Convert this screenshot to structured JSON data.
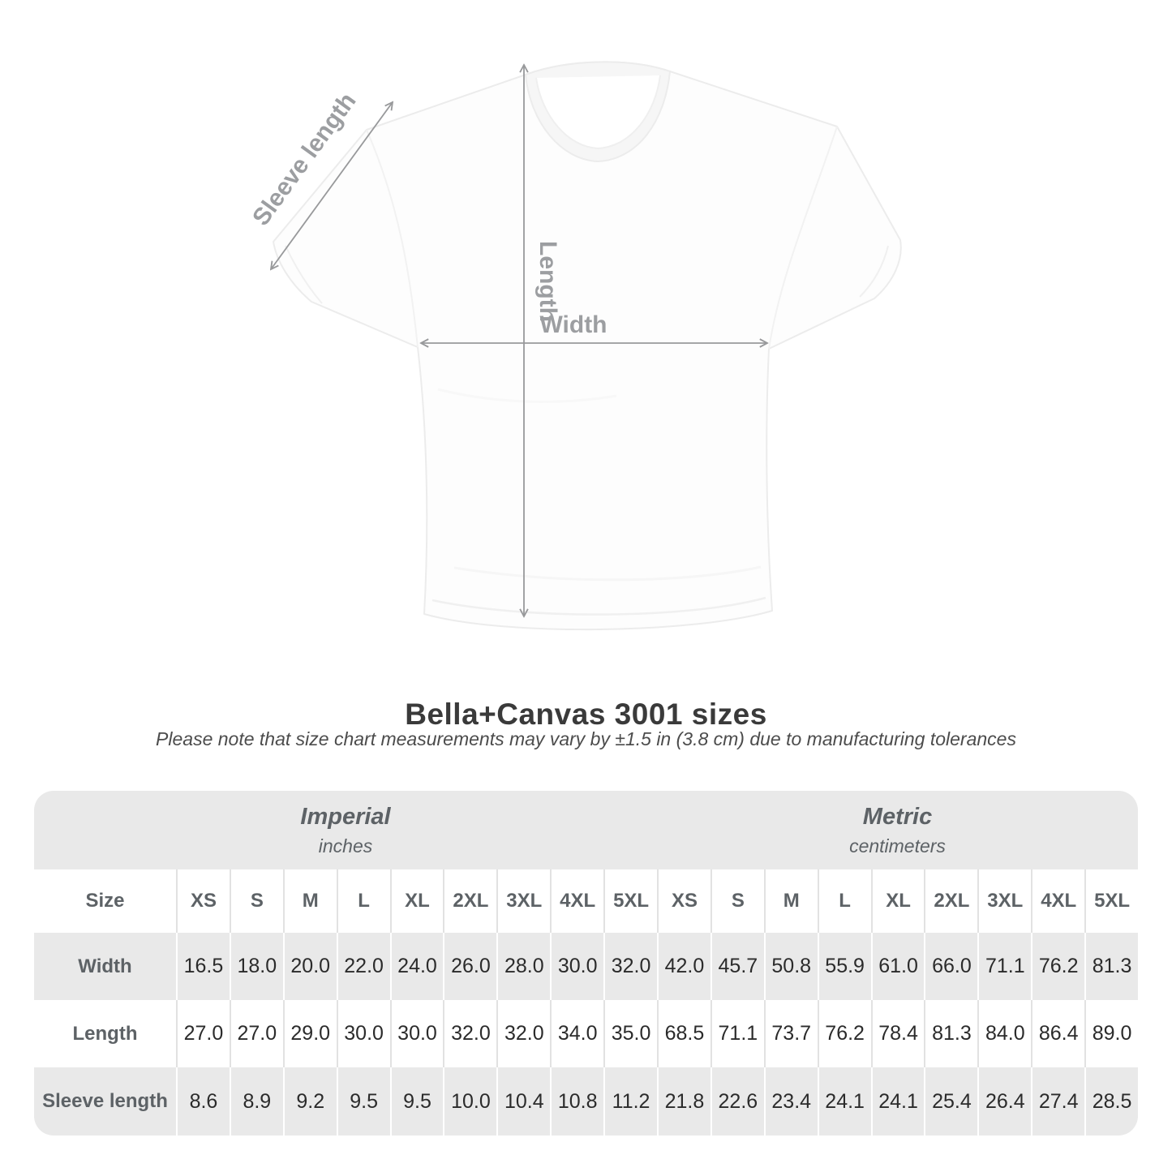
{
  "diagram": {
    "sleeve_label": "Sleeve length",
    "length_label": "Length",
    "width_label": "Width"
  },
  "title": "Bella+Canvas 3001 sizes",
  "subtitle": "Please note that size chart measurements may vary by ±1.5 in (3.8 cm) due to manufacturing tolerances",
  "table": {
    "unit_headers": {
      "imperial": {
        "label": "Imperial",
        "sublabel": "inches"
      },
      "metric": {
        "label": "Metric",
        "sublabel": "centimeters"
      }
    },
    "size_header": "Size",
    "sizes": [
      "XS",
      "S",
      "M",
      "L",
      "XL",
      "2XL",
      "3XL",
      "4XL",
      "5XL"
    ],
    "rows": [
      {
        "label": "Width",
        "imperial": [
          "16.5",
          "18.0",
          "20.0",
          "22.0",
          "24.0",
          "26.0",
          "28.0",
          "30.0",
          "32.0"
        ],
        "metric": [
          "42.0",
          "45.7",
          "50.8",
          "55.9",
          "61.0",
          "66.0",
          "71.1",
          "76.2",
          "81.3"
        ]
      },
      {
        "label": "Length",
        "imperial": [
          "27.0",
          "27.0",
          "29.0",
          "30.0",
          "30.0",
          "32.0",
          "32.0",
          "34.0",
          "35.0"
        ],
        "metric": [
          "68.5",
          "71.1",
          "73.7",
          "76.2",
          "78.4",
          "81.3",
          "84.0",
          "86.4",
          "89.0"
        ]
      },
      {
        "label": "Sleeve length",
        "imperial": [
          "8.6",
          "8.9",
          "9.2",
          "9.5",
          "9.5",
          "10.0",
          "10.4",
          "10.8",
          "11.2"
        ],
        "metric": [
          "21.8",
          "22.6",
          "23.4",
          "24.1",
          "24.1",
          "25.4",
          "26.4",
          "27.4",
          "28.5"
        ]
      }
    ]
  },
  "colors": {
    "table_band_gray": "#e9e9e9",
    "header_text_gray": "#5d6266",
    "value_text": "#2b2b2b",
    "arrow_gray": "#98999b",
    "diagram_label_gray": "#9c9ea1",
    "title_text": "#3a3a3a"
  },
  "chart_data": {
    "type": "table",
    "title": "Bella+Canvas 3001 sizes",
    "note": "Please note that size chart measurements may vary by ±1.5 in (3.8 cm) due to manufacturing tolerances",
    "column_groups": [
      "Imperial (inches)",
      "Metric (centimeters)"
    ],
    "columns": [
      "XS",
      "S",
      "M",
      "L",
      "XL",
      "2XL",
      "3XL",
      "4XL",
      "5XL"
    ],
    "rows": [
      {
        "label": "Width",
        "imperial_inches": [
          16.5,
          18.0,
          20.0,
          22.0,
          24.0,
          26.0,
          28.0,
          30.0,
          32.0
        ],
        "metric_cm": [
          42.0,
          45.7,
          50.8,
          55.9,
          61.0,
          66.0,
          71.1,
          76.2,
          81.3
        ]
      },
      {
        "label": "Length",
        "imperial_inches": [
          27.0,
          27.0,
          29.0,
          30.0,
          30.0,
          32.0,
          32.0,
          34.0,
          35.0
        ],
        "metric_cm": [
          68.5,
          71.1,
          73.7,
          76.2,
          78.4,
          81.3,
          84.0,
          86.4,
          89.0
        ]
      },
      {
        "label": "Sleeve length",
        "imperial_inches": [
          8.6,
          8.9,
          9.2,
          9.5,
          9.5,
          10.0,
          10.4,
          10.8,
          11.2
        ],
        "metric_cm": [
          21.8,
          22.6,
          23.4,
          24.1,
          24.1,
          25.4,
          26.4,
          27.4,
          28.5
        ]
      }
    ]
  }
}
